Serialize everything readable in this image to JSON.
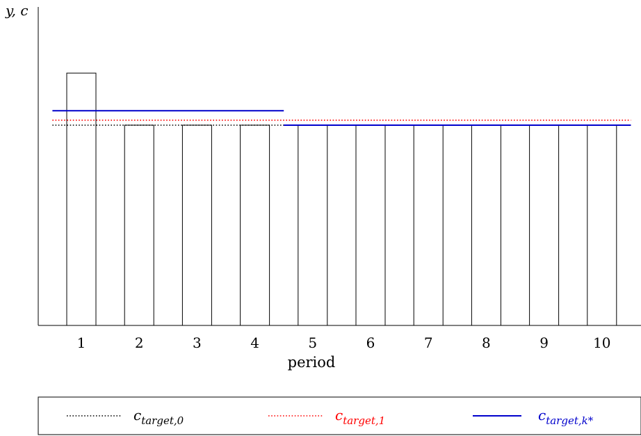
{
  "chart_data": {
    "type": "bar",
    "xlabel": "period",
    "ylabel": "y, c",
    "categories": [
      "1",
      "2",
      "3",
      "4",
      "5",
      "6",
      "7",
      "8",
      "9",
      "10"
    ],
    "values": [
      1.26,
      1.0,
      1.0,
      1.0,
      1.0,
      1.0,
      1.0,
      1.0,
      1.0,
      1.0
    ],
    "ylim": [
      0,
      1.4
    ],
    "bar_fill": "#ffffff",
    "bar_stroke": "#000000",
    "series": [
      {
        "name": "c_{target,0}",
        "label_main": "c",
        "label_sub": "target,0",
        "style": "dotted",
        "color": "#000000",
        "segments": [
          {
            "x_from": 0.5,
            "x_to": 10.5,
            "y": 1.0
          }
        ]
      },
      {
        "name": "c_{target,1}",
        "label_main": "c",
        "label_sub": "target,1",
        "style": "dotted",
        "color": "#ff0000",
        "segments": [
          {
            "x_from": 0.5,
            "x_to": 10.5,
            "y": 1.025
          }
        ]
      },
      {
        "name": "c_{target,k*}",
        "label_main": "c",
        "label_sub": "target,k*",
        "style": "solid",
        "color": "#0000cc",
        "segments": [
          {
            "x_from": 0.5,
            "x_to": 4.5,
            "y": 1.072
          },
          {
            "x_from": 4.5,
            "x_to": 10.5,
            "y": 1.0
          }
        ]
      }
    ],
    "legend_position": "bottom",
    "grid": false
  }
}
